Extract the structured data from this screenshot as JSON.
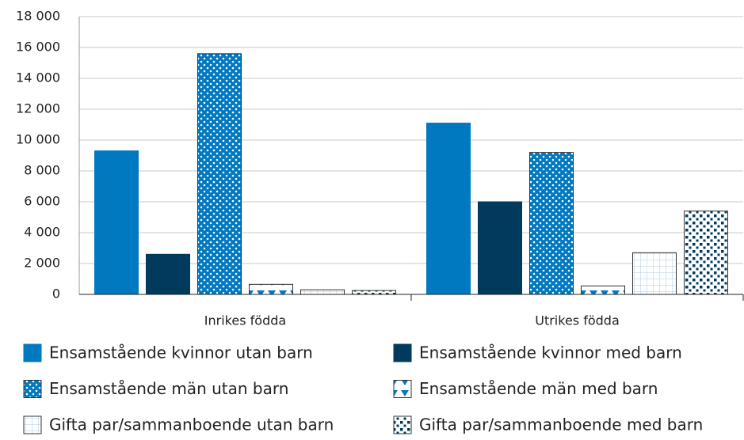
{
  "chart_data": {
    "type": "bar",
    "categories": [
      "Inrikes födda",
      "Utrikes födda"
    ],
    "series": [
      {
        "name": "Ensamstående kvinnor utan barn",
        "color": "#0079c1",
        "pattern": "solid",
        "values": [
          9300,
          11100
        ]
      },
      {
        "name": "Ensamstående kvinnor med barn",
        "color": "#003a5d",
        "pattern": "solid",
        "values": [
          2600,
          6000
        ]
      },
      {
        "name": "Ensamstående män utan barn",
        "color": "#0079c1",
        "pattern": "dots",
        "values": [
          15600,
          9200
        ]
      },
      {
        "name": "Ensamstående män med barn",
        "color": "#0079c1",
        "pattern": "diamonds",
        "values": [
          650,
          550
        ]
      },
      {
        "name": "Gifta par/sammanboende utan barn",
        "color": "#c6dcee",
        "pattern": "grid",
        "values": [
          300,
          2700
        ]
      },
      {
        "name": "Gifta par/sammanboende med barn",
        "color": "#003a5d",
        "pattern": "squares",
        "values": [
          250,
          5400
        ]
      }
    ],
    "ylim": [
      0,
      18000
    ],
    "yticks": [
      0,
      {
        "value": 2000,
        "label": "2 000"
      },
      {
        "value": 4000,
        "label": "4 000"
      },
      {
        "value": 6000,
        "label": "6 000"
      },
      {
        "value": 8000,
        "label": "8 000"
      },
      {
        "value": 10000,
        "label": "10 000"
      },
      {
        "value": 12000,
        "label": "12 000"
      },
      {
        "value": 14000,
        "label": "14 000"
      },
      {
        "value": 16000,
        "label": "16 000"
      },
      {
        "value": 18000,
        "label": "18 000"
      }
    ],
    "grid": true
  }
}
